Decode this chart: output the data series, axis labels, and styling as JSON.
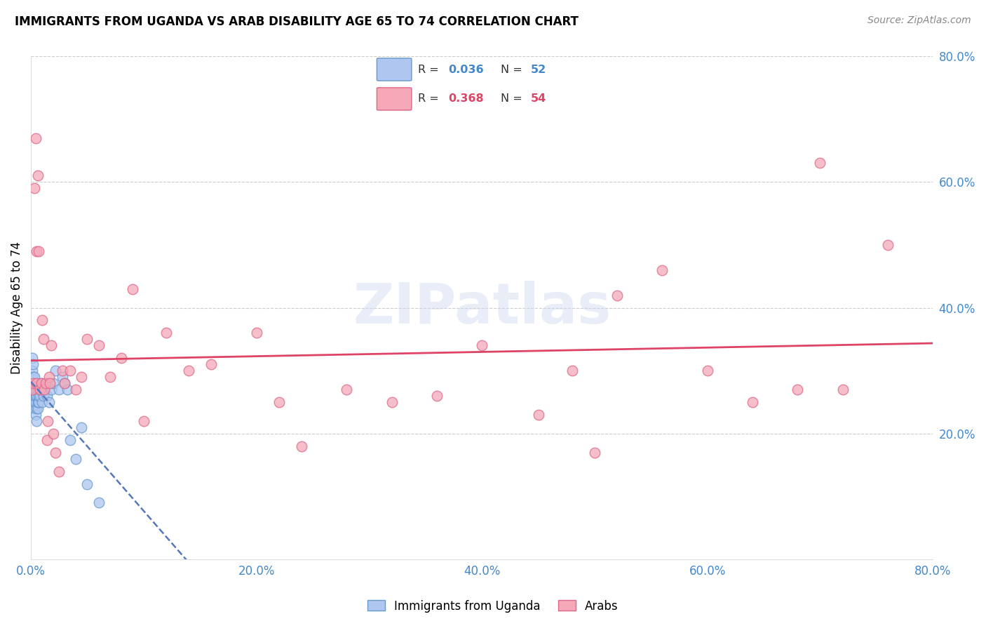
{
  "title": "IMMIGRANTS FROM UGANDA VS ARAB DISABILITY AGE 65 TO 74 CORRELATION CHART",
  "source": "Source: ZipAtlas.com",
  "ylabel": "Disability Age 65 to 74",
  "xlim": [
    0.0,
    0.8
  ],
  "ylim": [
    0.0,
    0.8
  ],
  "xticks": [
    0.0,
    0.2,
    0.4,
    0.6,
    0.8
  ],
  "yticks": [
    0.2,
    0.4,
    0.6,
    0.8
  ],
  "xticklabels": [
    "0.0%",
    "20.0%",
    "40.0%",
    "60.0%",
    "80.0%"
  ],
  "yticklabels": [
    "20.0%",
    "40.0%",
    "60.0%",
    "80.0%"
  ],
  "uganda_color": "#aec6f0",
  "arab_color": "#f4a8b8",
  "uganda_edge": "#6699cc",
  "arab_edge": "#dd6688",
  "uganda_R": "0.036",
  "uganda_N": "52",
  "arab_R": "0.368",
  "arab_N": "54",
  "uganda_line_color": "#5577bb",
  "arab_line_color": "#dd4466",
  "watermark": "ZIPatlas",
  "uganda_x": [
    0.001,
    0.001,
    0.001,
    0.001,
    0.002,
    0.002,
    0.002,
    0.002,
    0.002,
    0.003,
    0.003,
    0.003,
    0.003,
    0.003,
    0.003,
    0.004,
    0.004,
    0.004,
    0.004,
    0.005,
    0.005,
    0.005,
    0.005,
    0.006,
    0.006,
    0.006,
    0.007,
    0.007,
    0.008,
    0.008,
    0.009,
    0.009,
    0.01,
    0.01,
    0.011,
    0.012,
    0.013,
    0.014,
    0.015,
    0.016,
    0.018,
    0.02,
    0.022,
    0.025,
    0.028,
    0.03,
    0.032,
    0.035,
    0.04,
    0.045,
    0.05,
    0.06
  ],
  "uganda_y": [
    0.27,
    0.3,
    0.28,
    0.32,
    0.26,
    0.27,
    0.28,
    0.29,
    0.31,
    0.24,
    0.25,
    0.26,
    0.27,
    0.28,
    0.29,
    0.23,
    0.25,
    0.26,
    0.27,
    0.22,
    0.24,
    0.26,
    0.27,
    0.24,
    0.25,
    0.27,
    0.25,
    0.26,
    0.26,
    0.27,
    0.27,
    0.28,
    0.25,
    0.27,
    0.26,
    0.27,
    0.28,
    0.26,
    0.28,
    0.25,
    0.27,
    0.28,
    0.3,
    0.27,
    0.29,
    0.28,
    0.27,
    0.19,
    0.16,
    0.21,
    0.12,
    0.09
  ],
  "arab_x": [
    0.001,
    0.002,
    0.003,
    0.004,
    0.005,
    0.005,
    0.006,
    0.007,
    0.008,
    0.009,
    0.01,
    0.011,
    0.012,
    0.013,
    0.014,
    0.015,
    0.016,
    0.017,
    0.018,
    0.02,
    0.022,
    0.025,
    0.028,
    0.03,
    0.035,
    0.04,
    0.045,
    0.05,
    0.06,
    0.07,
    0.08,
    0.09,
    0.1,
    0.12,
    0.14,
    0.16,
    0.2,
    0.22,
    0.24,
    0.28,
    0.32,
    0.36,
    0.4,
    0.45,
    0.48,
    0.5,
    0.52,
    0.56,
    0.6,
    0.64,
    0.68,
    0.7,
    0.72,
    0.76
  ],
  "arab_y": [
    0.27,
    0.28,
    0.59,
    0.67,
    0.49,
    0.28,
    0.61,
    0.49,
    0.27,
    0.28,
    0.38,
    0.35,
    0.27,
    0.28,
    0.19,
    0.22,
    0.29,
    0.28,
    0.34,
    0.2,
    0.17,
    0.14,
    0.3,
    0.28,
    0.3,
    0.27,
    0.29,
    0.35,
    0.34,
    0.29,
    0.32,
    0.43,
    0.22,
    0.36,
    0.3,
    0.31,
    0.36,
    0.25,
    0.18,
    0.27,
    0.25,
    0.26,
    0.34,
    0.23,
    0.3,
    0.17,
    0.42,
    0.46,
    0.3,
    0.25,
    0.27,
    0.63,
    0.27,
    0.5
  ]
}
